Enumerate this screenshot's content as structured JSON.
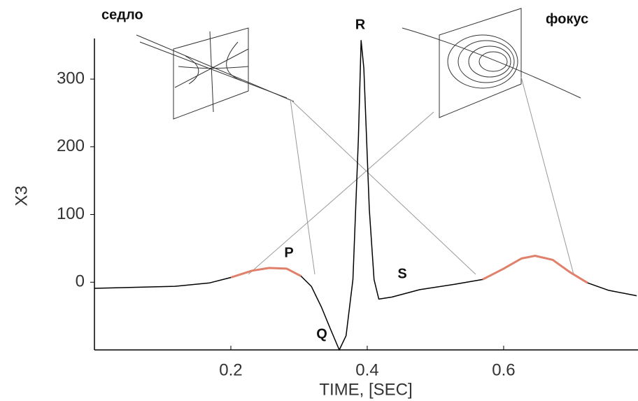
{
  "chart_data": {
    "type": "line",
    "xlabel": "TIME, [SEC]",
    "ylabel": "X3",
    "x": [
      0,
      0.118,
      0.169,
      0.2,
      0.231,
      0.256,
      0.282,
      0.303,
      0.318,
      0.333,
      0.346,
      0.359,
      0.369,
      0.379,
      0.387,
      0.391,
      0.395,
      0.403,
      0.41,
      0.417,
      0.436,
      0.477,
      0.528,
      0.569,
      0.6,
      0.626,
      0.646,
      0.672,
      0.697,
      0.723,
      0.754,
      0.795
    ],
    "series": [
      {
        "color": "#000000",
        "values": [
          -9,
          -6,
          -1,
          7,
          17,
          21,
          20,
          9,
          -6,
          -37,
          -69,
          -100,
          -79,
          4,
          212,
          357,
          316,
          108,
          4,
          -25,
          -22,
          -11,
          -3,
          4,
          20,
          35,
          39,
          33,
          15,
          -1,
          -12,
          -20
        ]
      },
      {
        "color": "#e0806a",
        "values": [
          null,
          null,
          null,
          7,
          17,
          21,
          20,
          9,
          null,
          null,
          null,
          null,
          null,
          null,
          null,
          null,
          null,
          null,
          null,
          null,
          null,
          null,
          null,
          4,
          20,
          35,
          39,
          33,
          15,
          -1,
          null,
          null
        ]
      }
    ],
    "xlim": [
      0,
      0.797
    ],
    "ylim": [
      -100,
      360
    ],
    "xticks": [
      0.2,
      0.4,
      0.6
    ],
    "yticks": [
      0,
      100,
      200,
      300
    ],
    "annotations": [
      "седло",
      "фокус",
      "P",
      "Q",
      "R",
      "S"
    ]
  }
}
